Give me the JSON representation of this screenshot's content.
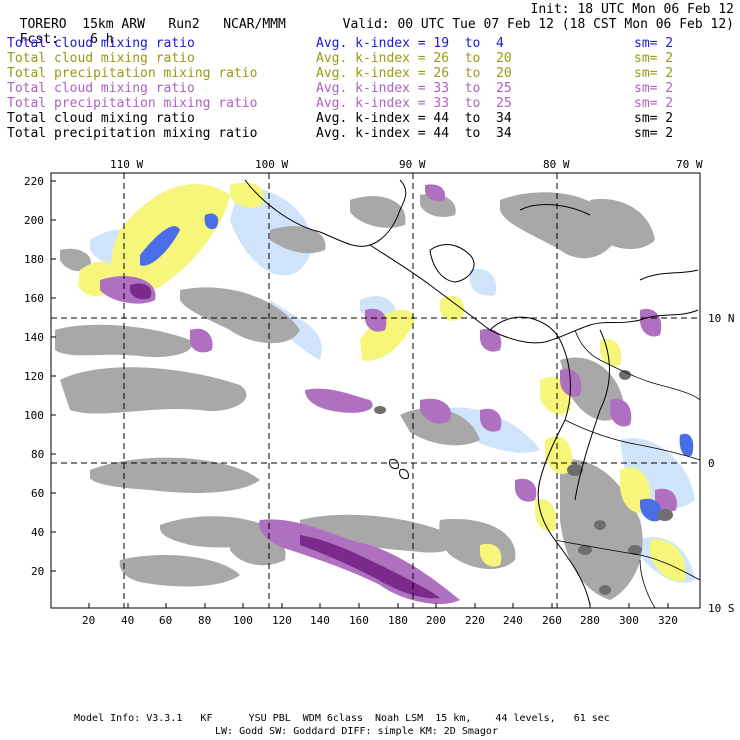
{
  "header": {
    "model": "TORERO",
    "resolution": "15km ARW",
    "run": "Run2",
    "org": "NCAR/MMM",
    "init": "Init: 18 UTC Mon 06 Feb 12",
    "fcst_label": "Fcst:",
    "fcst_value": "6 h",
    "valid": "Valid: 00 UTC Tue 07 Feb 12 (18 CST Mon 06 Feb 12)"
  },
  "legend": [
    {
      "name": "Total cloud mixing ratio",
      "avg_label": "Avg. k-index =",
      "k1": "19",
      "to": "to",
      "k2": "4",
      "sm": "sm= 2",
      "color": "#1a1ad0"
    },
    {
      "name": "Total cloud mixing ratio",
      "avg_label": "Avg. k-index =",
      "k1": "26",
      "to": "to",
      "k2": "20",
      "sm": "sm= 2",
      "color": "#9a9a10"
    },
    {
      "name": "Total precipitation mixing ratio",
      "avg_label": "Avg. k-index =",
      "k1": "26",
      "to": "to",
      "k2": "20",
      "sm": "sm= 2",
      "color": "#9a9a10"
    },
    {
      "name": "Total cloud mixing ratio",
      "avg_label": "Avg. k-index =",
      "k1": "33",
      "to": "to",
      "k2": "25",
      "sm": "sm= 2",
      "color": "#b060c0"
    },
    {
      "name": "Total precipitation mixing ratio",
      "avg_label": "Avg. k-index =",
      "k1": "33",
      "to": "to",
      "k2": "25",
      "sm": "sm= 2",
      "color": "#b060c0"
    },
    {
      "name": "Total cloud mixing ratio",
      "avg_label": "Avg. k-index =",
      "k1": "44",
      "to": "to",
      "k2": "34",
      "sm": "sm= 2",
      "color": "#000000"
    },
    {
      "name": "Total precipitation mixing ratio",
      "avg_label": "Avg. k-index =",
      "k1": "44",
      "to": "to",
      "k2": "34",
      "sm": "sm= 2",
      "color": "#000000"
    }
  ],
  "map": {
    "top_longitudes": [
      "110 W",
      "100 W",
      "90 W",
      "80 W",
      "70 W"
    ],
    "right_latitudes": [
      "10 N",
      "0",
      "10 S"
    ],
    "y_ticks": [
      "220",
      "200",
      "180",
      "160",
      "140",
      "120",
      "100",
      "80",
      "60",
      "40",
      "20"
    ],
    "x_ticks": [
      "20",
      "40",
      "60",
      "80",
      "100",
      "120",
      "140",
      "160",
      "180",
      "200",
      "220",
      "240",
      "260",
      "280",
      "300",
      "320"
    ],
    "colors": {
      "gray": "#a8a8a8",
      "dark_gray": "#6e6e6e",
      "yellow": "#f6f67a",
      "purple": "#b070c0",
      "dark_purple": "#7a2a8a",
      "light_blue": "#cfe4fb",
      "blue": "#4a6ee8",
      "dark_blue": "#1a2ad8"
    }
  },
  "footer": {
    "line1": "Model Info: V3.3.1   KF      YSU PBL  WDM 6class  Noah LSM  15 km,    44 levels,   61 sec",
    "line2": "LW: Godd SW: Goddard DIFF: simple KM: 2D Smagor"
  }
}
